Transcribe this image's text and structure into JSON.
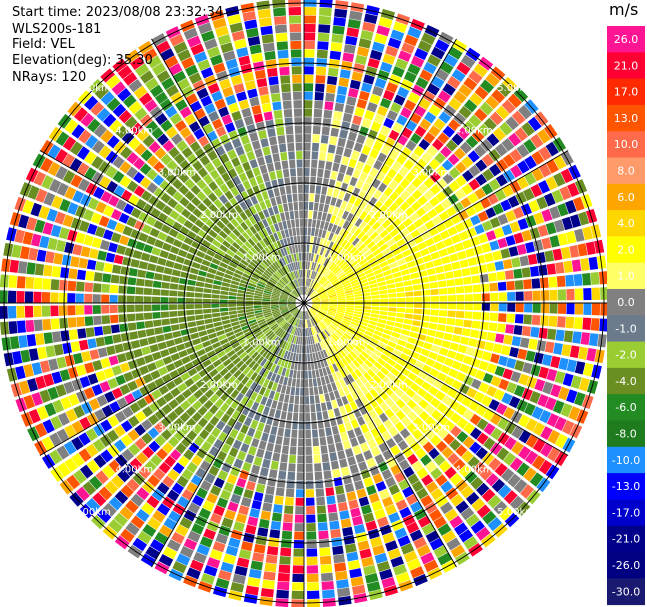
{
  "header": {
    "start_time": "Start time: 2023/08/08 23:32:34",
    "instrument": "WLS200s-181",
    "field": "Field: VEL",
    "elevation": "Elevation(deg): 35.30",
    "nrays": "NRays: 120"
  },
  "chart_data": {
    "type": "heatmap",
    "projection": "polar-ppi",
    "field": "VEL",
    "rays": 120,
    "unit": "m/s",
    "range_rings_km": [
      1.0,
      2.0,
      3.0,
      4.0,
      5.0
    ],
    "ring_labels": [
      "1.00km",
      "2.00km",
      "3.00km",
      "4.00km",
      "5.00km"
    ],
    "spokes_deg": [
      0,
      30,
      60,
      90,
      120,
      150,
      180,
      210,
      240,
      270,
      300,
      330
    ],
    "pattern_summary": {
      "positive_velocity_sector": "east (yellow/orange, approx +2 to +6 m/s)",
      "negative_velocity_sector": "west (green, approx -2 to -6 m/s)",
      "near_zero": "north and south (gray)",
      "outer_range": "noisy, random colors beyond ~3.5 km"
    },
    "colorbar": {
      "tick_labels": [
        "26.0",
        "21.0",
        "17.0",
        "13.0",
        "10.0",
        "8.0",
        "6.0",
        "4.0",
        "2.0",
        "1.0",
        "0.0",
        "-1.0",
        "-2.0",
        "-4.0",
        "-6.0",
        "-8.0",
        "-10.0",
        "-13.0",
        "-17.0",
        "-21.0",
        "-26.0",
        "-30.0"
      ],
      "colors": [
        "#ff1493",
        "#ff0033",
        "#ff2a00",
        "#ff5500",
        "#ff6a4a",
        "#ff9a6a",
        "#ffa500",
        "#ffd700",
        "#ffff00",
        "#ffff66",
        "#808080",
        "#6b7b8c",
        "#9acd32",
        "#6b8e23",
        "#228b22",
        "#1e7b1e",
        "#1e90ff",
        "#0000ff",
        "#0000cd",
        "#00008b",
        "#000080",
        "#191970"
      ]
    }
  }
}
